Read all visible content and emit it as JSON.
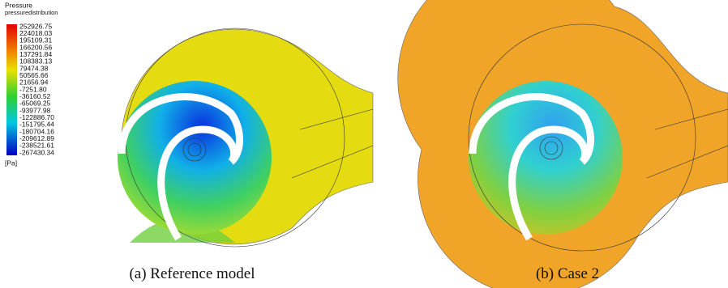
{
  "legend": {
    "title": "Pressure",
    "variable": "pressuredistribution",
    "labels": [
      "252926.75",
      "224018.03",
      "195109.31",
      "166200.56",
      "137291.84",
      "108383.13",
      "79474.38",
      "50565.66",
      "21656.94",
      "-7251.80",
      "-36160.52",
      "-65069.25",
      "-93977.98",
      "-122886.70",
      "-151795.44",
      "-180704.16",
      "-209612.89",
      "-238521.61",
      "-267430.34"
    ],
    "unit": "[Pa]"
  },
  "panels": [
    {
      "caption": "(a) Reference model"
    },
    {
      "caption": "(b) Case 2"
    }
  ]
}
